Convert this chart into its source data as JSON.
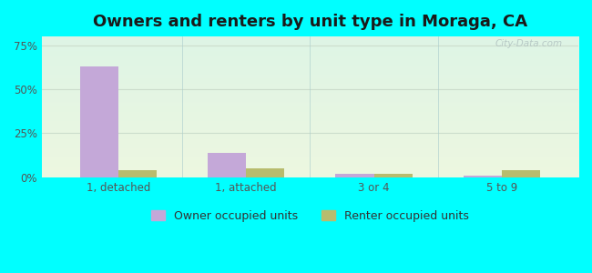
{
  "title": "Owners and renters by unit type in Moraga, CA",
  "categories": [
    "1, detached",
    "1, attached",
    "3 or 4",
    "5 to 9"
  ],
  "owner_values": [
    63.0,
    14.0,
    2.0,
    1.0
  ],
  "renter_values": [
    4.0,
    5.0,
    2.0,
    4.0
  ],
  "owner_color": "#c4a8d8",
  "renter_color": "#b8bc6e",
  "yticks": [
    0,
    25,
    50,
    75
  ],
  "ylim": [
    0,
    80
  ],
  "title_fontsize": 13,
  "tick_fontsize": 8.5,
  "legend_fontsize": 9,
  "owner_label": "Owner occupied units",
  "renter_label": "Renter occupied units",
  "bar_width": 0.3,
  "figure_bg": "#00ffff",
  "watermark": "City-Data.com",
  "grid_color": "#ccddcc",
  "separator_color": "#aacccc"
}
